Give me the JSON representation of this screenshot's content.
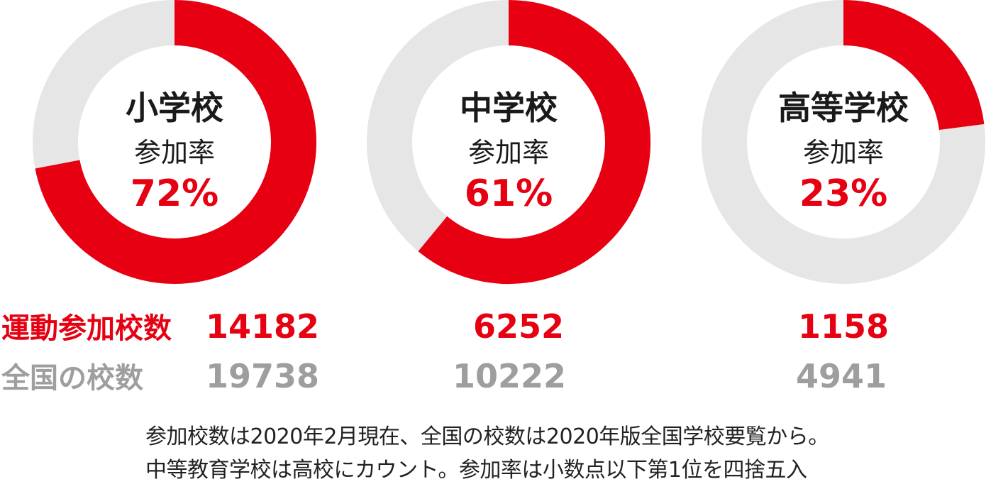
{
  "colors": {
    "accent": "#e60012",
    "track": "#e6e6e6",
    "grey_text": "#9e9e9e",
    "dark_text": "#1a1a1a"
  },
  "chart_data": [
    {
      "type": "pie",
      "variant": "donut",
      "title": "小学校",
      "subtitle": "参加率",
      "percent_label": "72%",
      "value": 72,
      "participating": "14182",
      "total": "19738"
    },
    {
      "type": "pie",
      "variant": "donut",
      "title": "中学校",
      "subtitle": "参加率",
      "percent_label": "61%",
      "value": 61,
      "participating": "6252",
      "total": "10222"
    },
    {
      "type": "pie",
      "variant": "donut",
      "title": "高等学校",
      "subtitle": "参加率",
      "percent_label": "23%",
      "value": 23,
      "participating": "1158",
      "total": "4941"
    }
  ],
  "row_labels": {
    "participating": "運動参加校数",
    "total": "全国の校数"
  },
  "notes": [
    "参加校数は2020年2月現在、全国の校数は2020年版全国学校要覧から。",
    "中等教育学校は高校にカウント。参加率は小数点以下第1位を四捨五入"
  ]
}
